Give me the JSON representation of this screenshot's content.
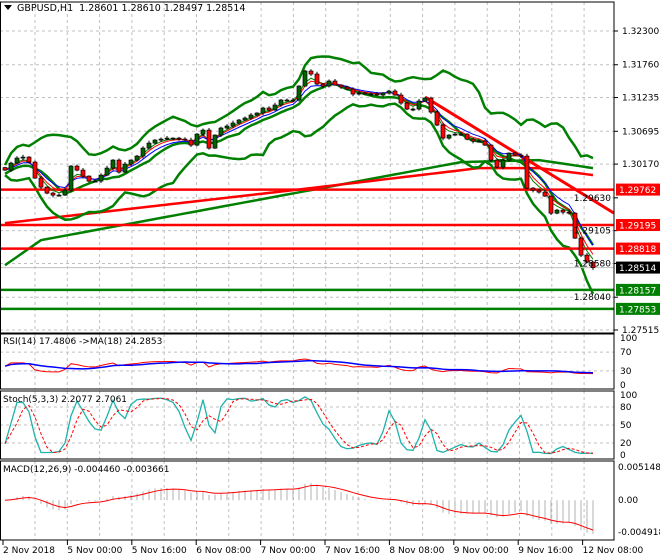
{
  "header": {
    "symbol_timeframe": "GBPUSD,H1",
    "open": "1.28601",
    "high": "1.28610",
    "low": "1.28497",
    "close": "1.28514"
  },
  "indicators": {
    "rsi_label": "RSI(14) 17.4806  ->MA(18) 24.2853",
    "stoch_label": "Stoch(5,3,3) 2.2077 2.7061",
    "macd_label": "MACD(12,26,9) -0.004460 -0.003661"
  },
  "price_axis": {
    "ticks": [
      "1.32300",
      "1.31760",
      "1.31235",
      "1.30695",
      "1.30170",
      "1.29630",
      "1.29105",
      "1.28580",
      "1.28040",
      "1.27515"
    ],
    "markers": [
      {
        "value": "1.29762",
        "color": "#ff0000"
      },
      {
        "value": "1.29195",
        "color": "#ff0000"
      },
      {
        "value": "1.28818",
        "color": "#ff0000"
      },
      {
        "value": "1.28514",
        "color": "#000000"
      },
      {
        "value": "1.28157",
        "color": "#008000"
      },
      {
        "value": "1.27853",
        "color": "#008000"
      }
    ]
  },
  "rsi_axis": [
    "100",
    "70",
    "30",
    "0"
  ],
  "stoch_axis": [
    "100",
    "80",
    "50",
    "20",
    "0"
  ],
  "macd_axis": [
    "0.005148",
    "0.00",
    "-0.004918"
  ],
  "time_axis": [
    "2 Nov 2018",
    "5 Nov 00:00",
    "5 Nov 16:00",
    "6 Nov 08:00",
    "7 Nov 00:00",
    "7 Nov 16:00",
    "8 Nov 08:00",
    "9 Nov 00:00",
    "9 Nov 16:00",
    "12 Nov 08:00"
  ],
  "colors": {
    "bull": "#006400",
    "bear": "#ff0000",
    "support": "#008000",
    "resistance": "#ff0000",
    "ma_fast": "#008000",
    "ma_mid": "#ff0000",
    "ma_slow": "#0000ff",
    "stoch_main": "#20b2aa",
    "grid": "#c0c0c0"
  },
  "chart_data": {
    "type": "candlestick",
    "symbol": "GBPUSD",
    "timeframe": "H1",
    "closes": [
      1.30074,
      1.30186,
      1.30266,
      1.30282,
      1.30202,
      1.29946,
      1.29802,
      1.29706,
      1.29674,
      1.29674,
      1.29754,
      1.30138,
      1.30074,
      1.29978,
      1.29898,
      1.29898,
      1.29994,
      1.30106,
      1.30234,
      1.30042,
      1.3017,
      1.30234,
      1.30298,
      1.30426,
      1.30506,
      1.30554,
      1.3057,
      1.30586,
      1.30586,
      1.3057,
      1.30554,
      1.30474,
      1.3065,
      1.30714,
      1.30426,
      1.30634,
      1.30747,
      1.30779,
      1.30827,
      1.30875,
      1.30907,
      1.30955,
      1.30987,
      1.31067,
      1.31035,
      1.31115,
      1.31195,
      1.31195,
      1.31195,
      1.31419,
      1.31659,
      1.31611,
      1.31451,
      1.31419,
      1.31499,
      1.31435,
      1.31403,
      1.31371,
      1.31291,
      1.31307,
      1.31291,
      1.31291,
      1.31275,
      1.31307,
      1.31339,
      1.31275,
      1.31147,
      1.31051,
      1.31051,
      1.31179,
      1.31227,
      1.31003,
      1.30795,
      1.30586,
      1.30634,
      1.3065,
      1.3065,
      1.3057,
      1.30538,
      1.30538,
      1.30474,
      1.30234,
      1.30122,
      1.30234,
      1.30346,
      1.30314,
      1.30298,
      1.29786,
      1.29754,
      1.29722,
      1.29658,
      1.29385,
      1.29433,
      1.29401,
      1.29385,
      1.28985,
      1.28713,
      1.28601,
      1.28514
    ],
    "slow_ma_red": [
      [
        0,
        1.29225
      ],
      [
        51,
        1.29786
      ],
      [
        79,
        1.30106
      ],
      [
        89,
        1.30106
      ],
      [
        98,
        1.29994
      ]
    ],
    "slow_ma_green": [
      [
        0,
        1.28552
      ],
      [
        6,
        1.28953
      ],
      [
        51,
        1.29754
      ],
      [
        76,
        1.30202
      ],
      [
        89,
        1.30234
      ],
      [
        98,
        1.30106
      ]
    ],
    "horizontal_lines": [
      {
        "value": 1.29762,
        "color": "#ff0000"
      },
      {
        "value": 1.29195,
        "color": "#ff0000"
      },
      {
        "value": 1.28818,
        "color": "#ff0000"
      },
      {
        "value": 1.28157,
        "color": "#008000"
      },
      {
        "value": 1.27853,
        "color": "#008000"
      }
    ],
    "trendline": {
      "from": [
        70,
        1.31243
      ],
      "to": [
        101,
        1.29385
      ],
      "color": "#ff0000"
    },
    "y_range": [
      1.27515,
      1.323
    ],
    "grid": true
  }
}
